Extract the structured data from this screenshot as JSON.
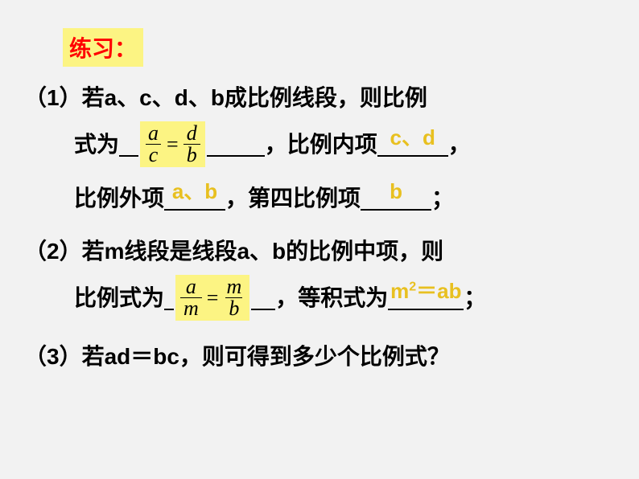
{
  "title": "练习：",
  "q1": {
    "line1_prefix": "（1）若a、c、d、b成比例线段，则比例",
    "line2_a": "式为",
    "line2_blank1_pre_w": 24,
    "frac1": {
      "n1": "a",
      "d1": "c",
      "n2": "d",
      "d2": "b"
    },
    "line2_blank1_post_w": 72,
    "line2_b": "，比例内项",
    "ans_inner": "c、d",
    "line2_c": "，",
    "line3_a": "比例外项",
    "ans_outer": "a、b",
    "line3_b": "，第四比例项",
    "ans_fourth": "b",
    "line3_c": "；"
  },
  "q2": {
    "line1": "（2）若m线段是线段a、b的比例中项，则",
    "line2_a": "比例式为",
    "frac2": {
      "n1": "a",
      "d1": "m",
      "n2": "m",
      "d2": "b"
    },
    "line2_b": "，等积式为",
    "ans_prod_base": "m",
    "ans_prod_sup": "2",
    "ans_prod_rest": "＝ab",
    "line2_c": "；"
  },
  "q3": {
    "line1": "（3）若ad＝bc，则可得到多少个比例式？"
  },
  "colors": {
    "background": "#f2f2f2",
    "highlight_bg": "#fcf483",
    "title_color": "#ff0000",
    "answer_color": "#e8c020",
    "text_color": "#000000"
  },
  "blank_widths": {
    "inner": 88,
    "outer": 76,
    "fourth": 88,
    "frac2_pre": 12,
    "frac2_post": 30,
    "prod": 94
  }
}
